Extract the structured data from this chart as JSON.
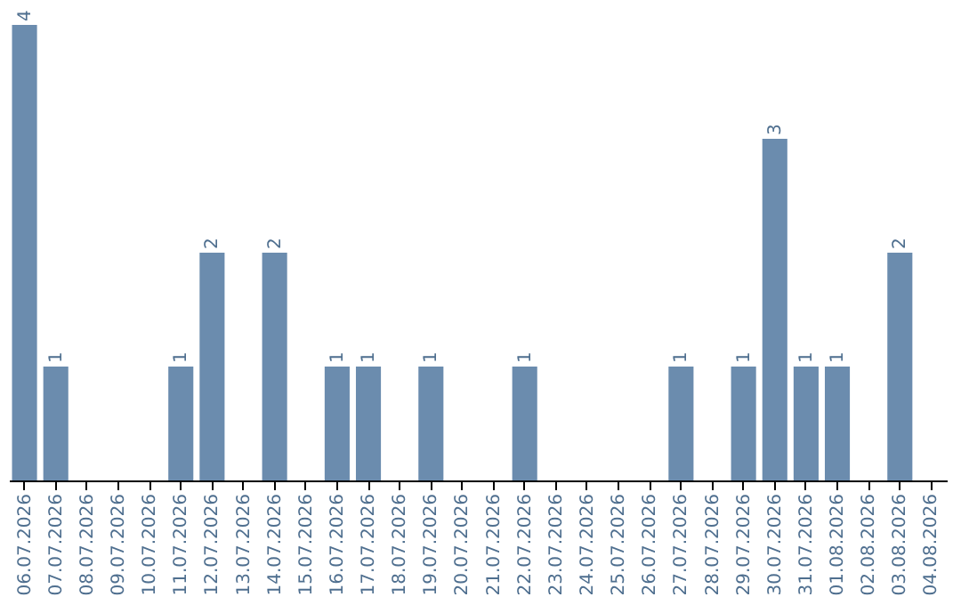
{
  "chart_data": {
    "type": "bar",
    "categories": [
      "06.07.2026",
      "07.07.2026",
      "08.07.2026",
      "09.07.2026",
      "10.07.2026",
      "11.07.2026",
      "12.07.2026",
      "13.07.2026",
      "14.07.2026",
      "15.07.2026",
      "16.07.2026",
      "17.07.2026",
      "18.07.2026",
      "19.07.2026",
      "20.07.2026",
      "21.07.2026",
      "22.07.2026",
      "23.07.2026",
      "24.07.2026",
      "25.07.2026",
      "26.07.2026",
      "27.07.2026",
      "28.07.2026",
      "29.07.2026",
      "30.07.2026",
      "31.07.2026",
      "01.08.2026",
      "02.08.2026",
      "03.08.2026",
      "04.08.2026"
    ],
    "values": [
      4,
      1,
      0,
      0,
      0,
      1,
      2,
      0,
      2,
      0,
      1,
      1,
      0,
      1,
      0,
      0,
      1,
      0,
      0,
      0,
      0,
      1,
      0,
      1,
      3,
      1,
      1,
      0,
      2,
      0
    ],
    "value_labels": [
      "4",
      "1",
      null,
      null,
      null,
      "1",
      "2",
      null,
      "2",
      null,
      "1",
      "1",
      null,
      "1",
      null,
      null,
      "1",
      null,
      null,
      null,
      null,
      "1",
      null,
      "1",
      "3",
      "1",
      "1",
      null,
      "2",
      null
    ],
    "color": "#6b8cae",
    "tick_labels": "x",
    "grid": false
  }
}
